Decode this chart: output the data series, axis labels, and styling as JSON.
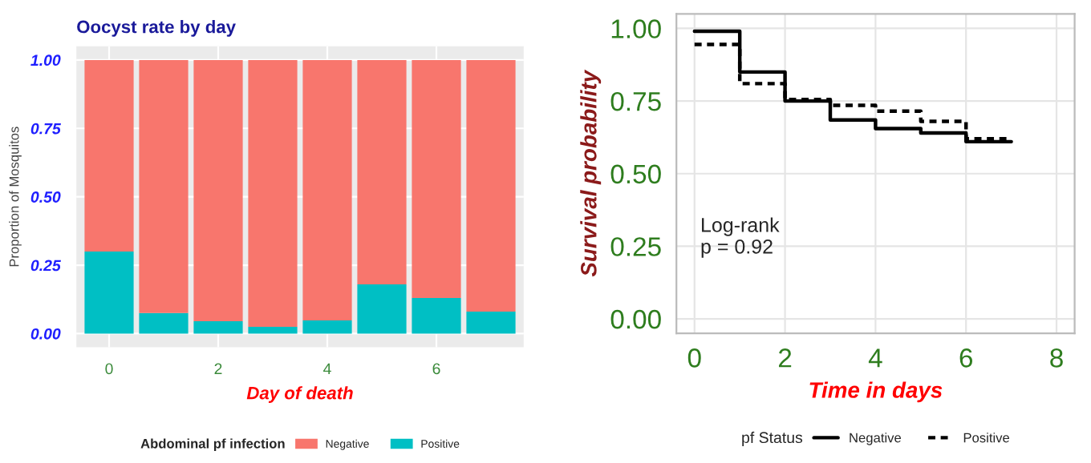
{
  "chart_data": [
    {
      "type": "bar",
      "title": "Oocyst rate by day",
      "xlabel": "Day of death",
      "ylabel": "Proportion of Mosquitos",
      "legend_title": "Abdominal pf infection",
      "stacked": true,
      "x": [
        0,
        1,
        2,
        3,
        4,
        5,
        6,
        7
      ],
      "series": [
        {
          "name": "Positive",
          "color": "#00bfc4",
          "values": [
            0.3,
            0.075,
            0.045,
            0.025,
            0.048,
            0.18,
            0.13,
            0.08
          ]
        },
        {
          "name": "Negative",
          "color": "#f8766d",
          "values": [
            0.7,
            0.925,
            0.955,
            0.975,
            0.952,
            0.82,
            0.87,
            0.92
          ]
        }
      ],
      "xlim": [
        -0.6,
        7.6
      ],
      "xticks": [
        0,
        2,
        4,
        6
      ],
      "ylim": [
        -0.05,
        1.05
      ],
      "yticks": [
        {
          "value": 0,
          "label": "0.00"
        },
        {
          "value": 0.25,
          "label": "0.25"
        },
        {
          "value": 0.5,
          "label": "0.50"
        },
        {
          "value": 0.75,
          "label": "0.75"
        },
        {
          "value": 1,
          "label": "1.00"
        }
      ],
      "grid": true,
      "legend": "bottom"
    },
    {
      "type": "step",
      "xlabel": "Time in days",
      "ylabel": "Survival probability",
      "legend_title": "pf Status",
      "x": [
        0,
        1,
        2,
        3,
        4,
        5,
        6,
        7
      ],
      "series": [
        {
          "name": "Negative",
          "color": "#000000",
          "line_style": "solid",
          "values": [
            0.99,
            0.85,
            0.75,
            0.685,
            0.655,
            0.64,
            0.61,
            0.61
          ]
        },
        {
          "name": "Positive",
          "color": "#000000",
          "line_style": "dashed",
          "values": [
            0.945,
            0.81,
            0.755,
            0.735,
            0.715,
            0.68,
            0.62,
            0.62
          ]
        }
      ],
      "annotations": [
        "Log-rank\np = 0.92"
      ],
      "xlim": [
        -0.4,
        8.4
      ],
      "xticks": [
        0,
        2,
        4,
        6,
        8
      ],
      "ylim": [
        -0.05,
        1.05
      ],
      "yticks": [
        {
          "value": 0,
          "label": "0.00"
        },
        {
          "value": 0.25,
          "label": "0.25"
        },
        {
          "value": 0.5,
          "label": "0.50"
        },
        {
          "value": 0.75,
          "label": "0.75"
        },
        {
          "value": 1,
          "label": "1.00"
        }
      ],
      "grid": true,
      "legend": "bottom"
    }
  ]
}
